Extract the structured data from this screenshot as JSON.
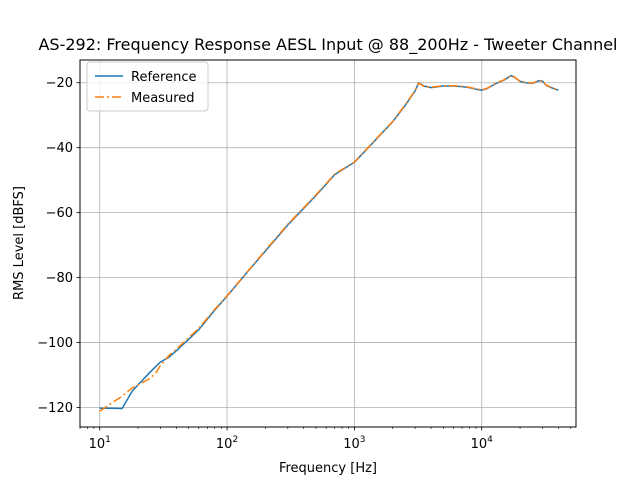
{
  "chart_data": {
    "type": "line",
    "title": "AS-292: Frequency Response AESL Input @ 88_200Hz - Tweeter Channel",
    "xlabel": "Frequency [Hz]",
    "ylabel": "RMS Level [dBFS]",
    "x_scale": "log",
    "xlim": [
      7,
      55000
    ],
    "ylim": [
      -126,
      -13
    ],
    "x_ticks": [
      {
        "value": 10,
        "base": "10",
        "exp": "1"
      },
      {
        "value": 100,
        "base": "10",
        "exp": "2"
      },
      {
        "value": 1000,
        "base": "10",
        "exp": "3"
      },
      {
        "value": 10000,
        "base": "10",
        "exp": "4"
      }
    ],
    "y_ticks": [
      {
        "value": -20,
        "label": "−20"
      },
      {
        "value": -40,
        "label": "−40"
      },
      {
        "value": -60,
        "label": "−60"
      },
      {
        "value": -80,
        "label": "−80"
      },
      {
        "value": -100,
        "label": "−100"
      },
      {
        "value": -120,
        "label": "−120"
      }
    ],
    "grid": true,
    "legend_position": "top-left",
    "series": [
      {
        "name": "Reference",
        "color": "#1f77b4",
        "style": "solid",
        "x": [
          10,
          12,
          15,
          18,
          20,
          25,
          30,
          35,
          40,
          50,
          60,
          80,
          100,
          150,
          200,
          300,
          500,
          700,
          1000,
          1500,
          2000,
          2500,
          3000,
          3200,
          3500,
          4000,
          5000,
          6000,
          7000,
          8000,
          9000,
          10000,
          11000,
          13000,
          15000,
          17000,
          18000,
          20000,
          22000,
          25000,
          28000,
          30000,
          32000,
          35000,
          40000
        ],
        "y": [
          -120.2,
          -120.2,
          -120.3,
          -115,
          -113,
          -109,
          -106,
          -104.5,
          -102.5,
          -99,
          -96,
          -90,
          -85.7,
          -77.5,
          -71.8,
          -63.8,
          -54.7,
          -48.3,
          -44.5,
          -37.2,
          -32,
          -27,
          -22.5,
          -20,
          -21,
          -21.5,
          -21,
          -21,
          -21.2,
          -21.5,
          -22,
          -22.3,
          -21.8,
          -20.2,
          -19.2,
          -17.8,
          -18.3,
          -19.6,
          -20,
          -20.2,
          -19.4,
          -19.5,
          -20.8,
          -21.5,
          -22.3
        ]
      },
      {
        "name": "Measured",
        "color": "#ff7f0e",
        "style": "dashdot",
        "x": [
          10,
          12,
          15,
          18,
          20,
          25,
          28,
          30,
          35,
          40,
          50,
          60,
          80,
          100,
          150,
          200,
          300,
          500,
          700,
          1000,
          1500,
          2000,
          2500,
          3000,
          3200,
          3500,
          4000,
          5000,
          6000,
          7000,
          8000,
          9000,
          10000,
          11000,
          13000,
          15000,
          17000,
          18000,
          20000,
          22000,
          25000,
          28000,
          30000,
          32000,
          35000,
          40000
        ],
        "y": [
          -121.2,
          -119,
          -116.5,
          -114,
          -113,
          -111,
          -109,
          -107,
          -104,
          -102,
          -98.5,
          -95.6,
          -89.8,
          -85.6,
          -77.4,
          -71.6,
          -63.6,
          -54.5,
          -48.1,
          -44.4,
          -37.1,
          -31.9,
          -26.8,
          -22.4,
          -20.1,
          -21.1,
          -21.4,
          -20.9,
          -20.9,
          -21.1,
          -21.4,
          -21.9,
          -22.2,
          -21.7,
          -20.1,
          -19.1,
          -17.7,
          -18.2,
          -19.5,
          -19.9,
          -20.1,
          -19.3,
          -19.4,
          -20.7,
          -21.4,
          -22.2
        ]
      }
    ]
  }
}
